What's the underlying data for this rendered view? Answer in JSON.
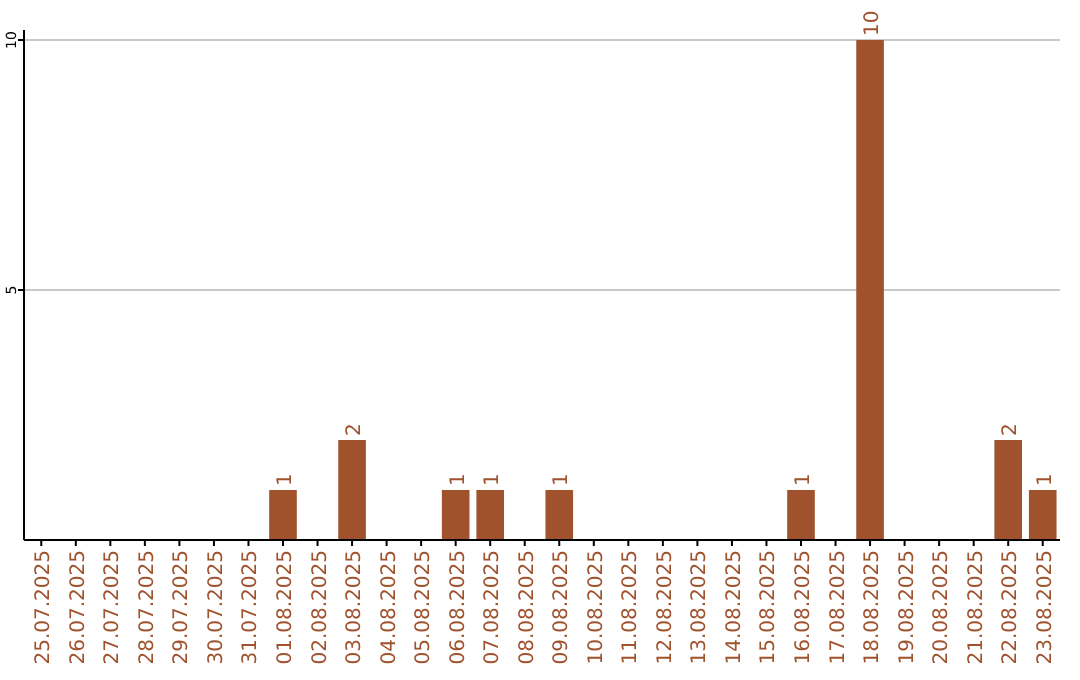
{
  "chart_data": {
    "type": "bar",
    "categories": [
      "25.07.2025",
      "26.07.2025",
      "27.07.2025",
      "28.07.2025",
      "29.07.2025",
      "30.07.2025",
      "31.07.2025",
      "01.08.2025",
      "02.08.2025",
      "03.08.2025",
      "04.08.2025",
      "05.08.2025",
      "06.08.2025",
      "07.08.2025",
      "08.08.2025",
      "09.08.2025",
      "10.08.2025",
      "11.08.2025",
      "12.08.2025",
      "13.08.2025",
      "14.08.2025",
      "15.08.2025",
      "16.08.2025",
      "17.08.2025",
      "18.08.2025",
      "19.08.2025",
      "20.08.2025",
      "21.08.2025",
      "22.08.2025",
      "23.08.2025"
    ],
    "values": [
      0,
      0,
      0,
      0,
      0,
      0,
      0,
      1,
      0,
      2,
      0,
      0,
      1,
      1,
      0,
      1,
      0,
      0,
      0,
      0,
      0,
      0,
      1,
      0,
      10,
      0,
      0,
      0,
      2,
      1
    ],
    "value_labels": [
      null,
      null,
      null,
      null,
      null,
      null,
      null,
      "1",
      null,
      "2",
      null,
      null,
      "1",
      "1",
      null,
      "1",
      null,
      null,
      null,
      null,
      null,
      null,
      "1",
      null,
      "10",
      null,
      null,
      null,
      "2",
      "1"
    ],
    "color": "#a0522d",
    "ylim": [
      0,
      10
    ],
    "yticks": [
      5,
      10
    ],
    "grid": "y"
  }
}
